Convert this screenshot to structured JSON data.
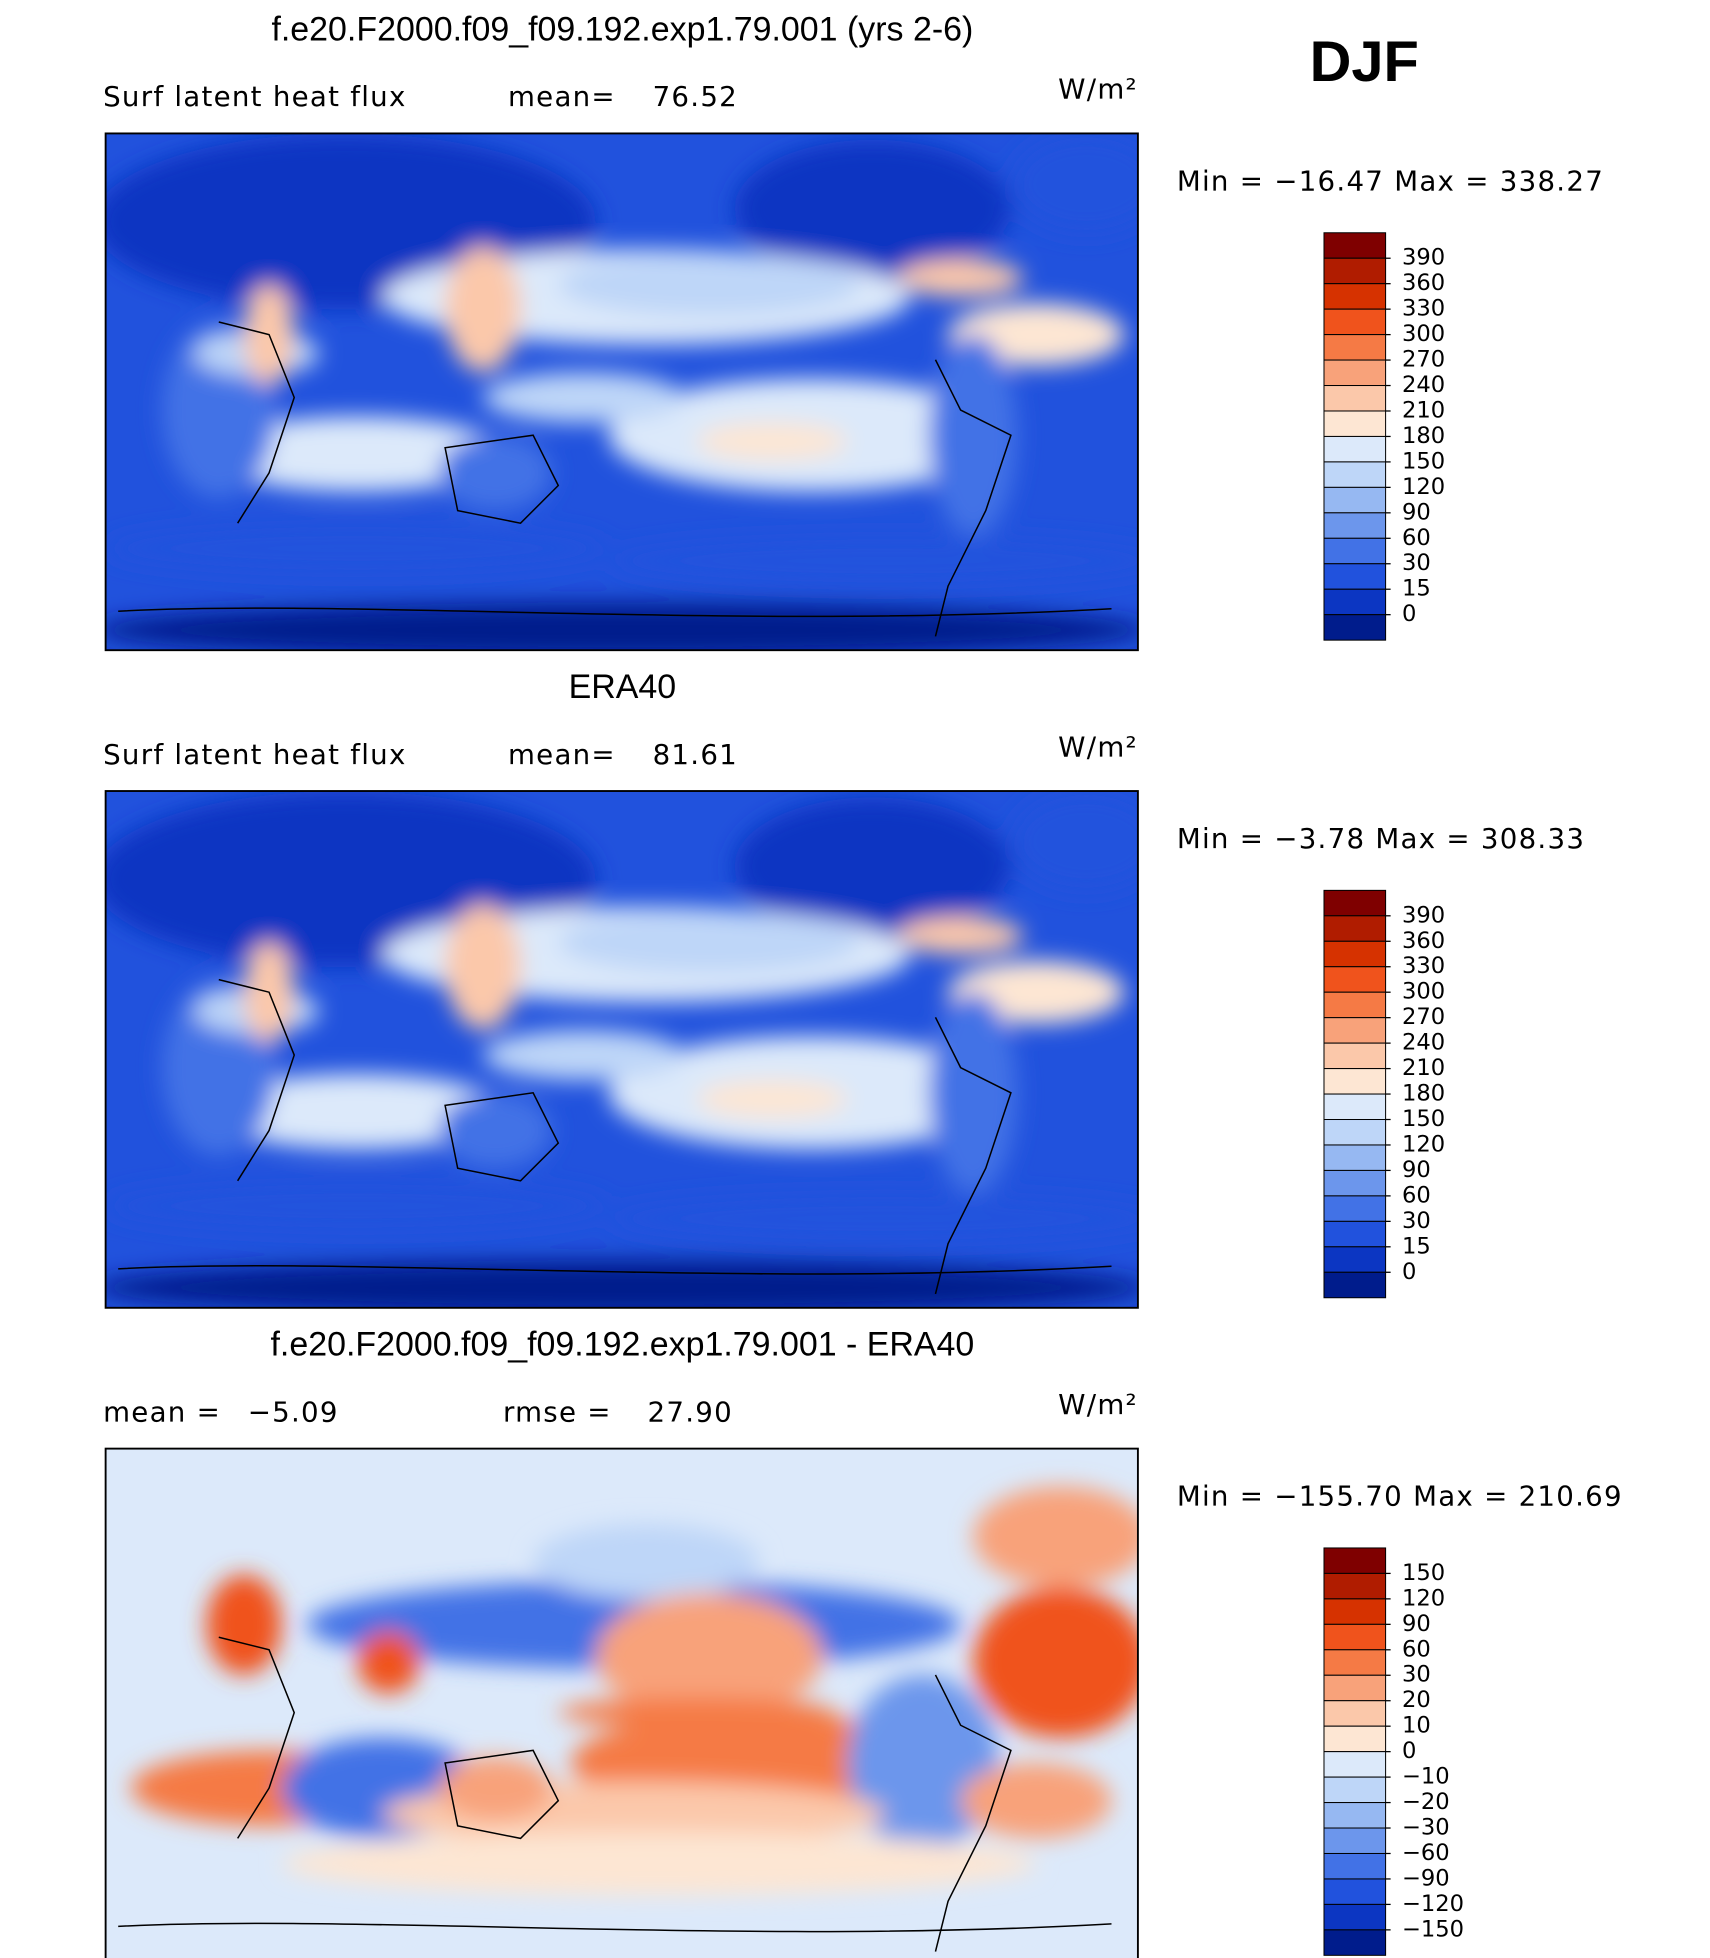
{
  "label": "DJF",
  "panels": [
    {
      "title": "f.e20.F2000.f09_f09.192.exp1.79.001 (yrs 2-6)",
      "variable": "Surf latent heat flux",
      "stats": [
        {
          "name": "mean=",
          "value": 76.52
        }
      ],
      "units": "W/m²",
      "extremes": [
        {
          "name": "Min =",
          "value": {
            "value": -16.47,
            "label": "−16.47"
          }
        },
        {
          "name": "Max =",
          "value": 338.27
        }
      ],
      "colorbar": {
        "ticks": [
          390,
          360,
          330,
          300,
          270,
          240,
          210,
          180,
          150,
          120,
          90,
          60,
          30,
          15,
          0
        ],
        "colors": [
          "#7f0000",
          "#b01c00",
          "#d63200",
          "#f0531c",
          "#f57a45",
          "#f8a27a",
          "#fbc8aa",
          "#fde6d3",
          "#dce9fa",
          "#bed6f8",
          "#96b8f2",
          "#6c96ec",
          "#4272e6",
          "#2152dd",
          "#0c36c2",
          "#001c8c"
        ]
      }
    },
    {
      "title": "ERA40",
      "variable": "Surf latent heat flux",
      "stats": [
        {
          "name": "mean=",
          "value": 81.61
        }
      ],
      "units": "W/m²",
      "extremes": [
        {
          "name": "Min =",
          "value": {
            "value": -3.78,
            "label": "−3.78"
          }
        },
        {
          "name": "Max =",
          "value": 308.33
        }
      ],
      "colorbar": {
        "ticks": [
          390,
          360,
          330,
          300,
          270,
          240,
          210,
          180,
          150,
          120,
          90,
          60,
          30,
          15,
          0
        ],
        "colors": [
          "#7f0000",
          "#b01c00",
          "#d63200",
          "#f0531c",
          "#f57a45",
          "#f8a27a",
          "#fbc8aa",
          "#fde6d3",
          "#dce9fa",
          "#bed6f8",
          "#96b8f2",
          "#6c96ec",
          "#4272e6",
          "#2152dd",
          "#0c36c2",
          "#001c8c"
        ]
      }
    },
    {
      "title": "f.e20.F2000.f09_f09.192.exp1.79.001 - ERA40",
      "stats": [
        {
          "name": "mean =",
          "value": {
            "value": -5.09,
            "label": "−5.09"
          }
        },
        {
          "name": "rmse =",
          "value": {
            "value": 27.9,
            "label": "27.90"
          }
        }
      ],
      "units": "W/m²",
      "extremes": [
        {
          "name": "Min =",
          "value": {
            "value": -155.7,
            "label": "−155.70"
          }
        },
        {
          "name": "Max =",
          "value": 210.69
        }
      ],
      "colorbar": {
        "ticks": [
          150,
          120,
          90,
          60,
          30,
          20,
          10,
          0,
          {
            "value": -10,
            "label": "−10"
          },
          {
            "value": -20,
            "label": "−20"
          },
          {
            "value": -30,
            "label": "−30"
          },
          {
            "value": -60,
            "label": "−60"
          },
          {
            "value": -90,
            "label": "−90"
          },
          {
            "value": -120,
            "label": "−120"
          },
          {
            "value": -150,
            "label": "−150"
          }
        ],
        "colors": [
          "#7f0000",
          "#b01c00",
          "#d63200",
          "#f0531c",
          "#f57a45",
          "#f8a27a",
          "#fbc8aa",
          "#fde6d3",
          "#dce9fa",
          "#bed6f8",
          "#96b8f2",
          "#6c96ec",
          "#4272e6",
          "#2152dd",
          "#0c36c2",
          "#001c8c"
        ]
      }
    }
  ]
}
